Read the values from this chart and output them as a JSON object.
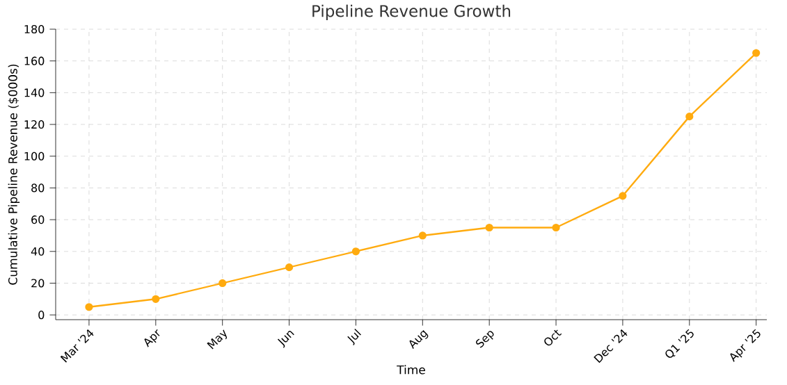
{
  "chart_data": {
    "type": "line",
    "title": "Pipeline Revenue Growth",
    "xlabel": "Time",
    "ylabel": "Cumulative Pipeline Revenue ($000s)",
    "categories": [
      "Mar '24",
      "Apr",
      "May",
      "Jun",
      "Jul",
      "Aug",
      "Sep",
      "Oct",
      "Dec '24",
      "Q1 '25",
      "Apr '25"
    ],
    "series": [
      {
        "color": "#ffab0f",
        "values": [
          5,
          10,
          20,
          30,
          40,
          50,
          55,
          55,
          75,
          125,
          165
        ]
      }
    ],
    "ylim": [
      -3,
      180
    ],
    "yticks": [
      0,
      20,
      40,
      60,
      80,
      100,
      120,
      140,
      160,
      180
    ],
    "grid": true,
    "marker": "circle",
    "line_style": "solid"
  }
}
